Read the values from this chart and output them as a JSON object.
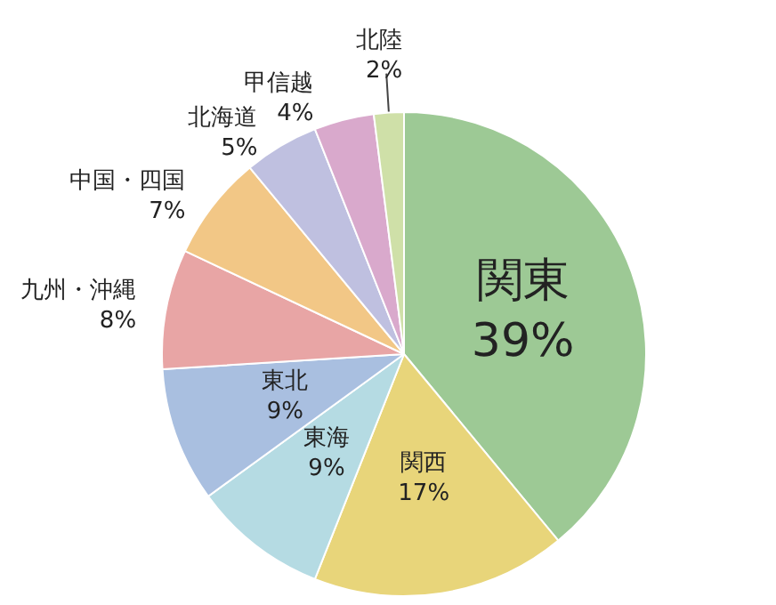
{
  "chart_data": {
    "type": "pie",
    "categories": [
      "関東",
      "関西",
      "東海",
      "東北",
      "九州・沖縄",
      "中国・四国",
      "北海道",
      "甲信越",
      "北陸"
    ],
    "values": [
      39,
      17,
      9,
      9,
      8,
      7,
      5,
      4,
      2
    ],
    "value_labels": [
      "39%",
      "17%",
      "9%",
      "9%",
      "8%",
      "7%",
      "5%",
      "4%",
      "2%"
    ],
    "colors": [
      "#9dc995",
      "#e8d57a",
      "#b5dbe3",
      "#a9bfe0",
      "#e8a5a5",
      "#f2c786",
      "#bfc0e0",
      "#d9a9cc",
      "#cfe0a8"
    ],
    "data_labels": true,
    "legend": false
  }
}
